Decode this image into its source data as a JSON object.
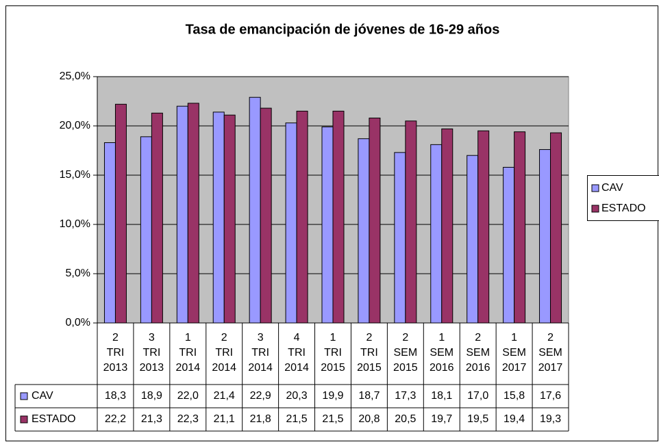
{
  "chart_data": {
    "type": "bar",
    "title": "Tasa de emancipación de jóvenes de 16-29 años",
    "categories": [
      "2 TRI 2013",
      "3 TRI 2013",
      "1 TRI 2014",
      "2 TRI 2014",
      "3 TRI 2014",
      "4 TRI 2014",
      "1 TRI 2015",
      "2 TRI 2015",
      "2 SEM 2015",
      "1 SEM 2016",
      "2 SEM 2016",
      "1 SEM 2017",
      "2 SEM 2017"
    ],
    "series": [
      {
        "name": "CAV",
        "color": "#9999ff",
        "values": [
          18.3,
          18.9,
          22.0,
          21.4,
          22.9,
          20.3,
          19.9,
          18.7,
          17.3,
          18.1,
          17.0,
          15.8,
          17.6
        ],
        "value_labels": [
          "18,3",
          "18,9",
          "22,0",
          "21,4",
          "22,9",
          "20,3",
          "19,9",
          "18,7",
          "17,3",
          "18,1",
          "17,0",
          "15,8",
          "17,6"
        ]
      },
      {
        "name": "ESTADO",
        "color": "#993366",
        "values": [
          22.2,
          21.3,
          22.3,
          21.1,
          21.8,
          21.5,
          21.5,
          20.8,
          20.5,
          19.7,
          19.5,
          19.4,
          19.3
        ],
        "value_labels": [
          "22,2",
          "21,3",
          "22,3",
          "21,1",
          "21,8",
          "21,5",
          "21,5",
          "20,8",
          "20,5",
          "19,7",
          "19,5",
          "19,4",
          "19,3"
        ]
      }
    ],
    "ylim": [
      0,
      25
    ],
    "yticks": [
      {
        "value": 0,
        "label": "0,0%"
      },
      {
        "value": 5,
        "label": "5,0%"
      },
      {
        "value": 10,
        "label": "10,0%"
      },
      {
        "value": 15,
        "label": "15,0%"
      },
      {
        "value": 20,
        "label": "20,0%"
      },
      {
        "value": 25,
        "label": "25,0%"
      }
    ],
    "grid": true,
    "legend": "right",
    "plot_background": "#c0c0c0"
  }
}
